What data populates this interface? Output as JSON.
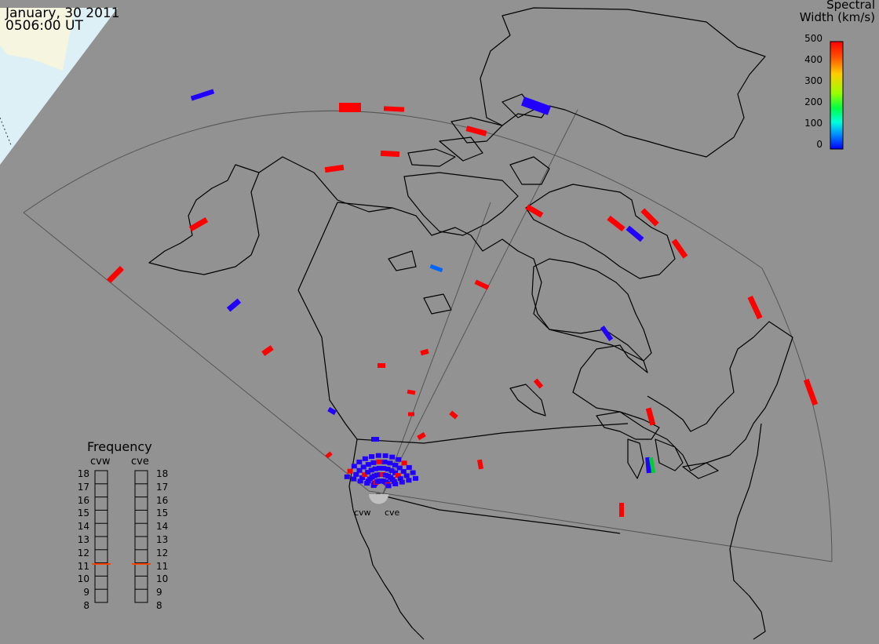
{
  "header": {
    "date": "January, 30 2011",
    "time": "0506:00 UT"
  },
  "colorbar": {
    "title_line1": "Spectral",
    "title_line2": "Width (km/s)",
    "ticks": [
      "500",
      "400",
      "300",
      "200",
      "100",
      "0"
    ],
    "gradient": [
      "#ff0000",
      "#ff6600",
      "#ffcc00",
      "#99ff00",
      "#00ff33",
      "#00ffcc",
      "#0099ff",
      "#0000ff"
    ]
  },
  "frequency": {
    "title": "Frequency",
    "radars": [
      "cvw",
      "cve"
    ],
    "labels": [
      "18",
      "17",
      "16",
      "15",
      "14",
      "13",
      "12",
      "11",
      "10",
      "9",
      "8"
    ],
    "current_mhz": 10.7,
    "marker_color": "#ff4400"
  },
  "sites": {
    "west": "cvw",
    "east": "cve"
  },
  "colors": {
    "background": "#929292",
    "ocean": "#ddf0f5",
    "land_far": "#f5f5e0",
    "high": "#ff0000",
    "low": "#2200ff",
    "mid_blue": "#0066ff",
    "green": "#00cc33"
  }
}
